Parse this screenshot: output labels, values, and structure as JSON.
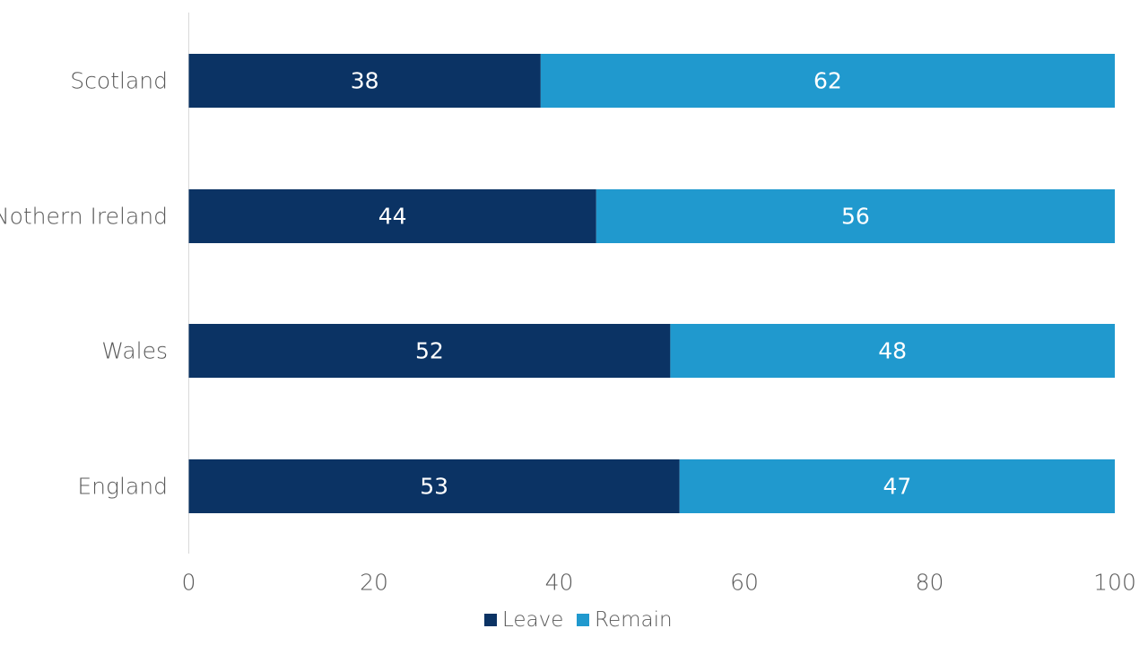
{
  "chart_data": {
    "type": "bar",
    "orientation": "horizontal",
    "stacked": true,
    "categories": [
      "Scotland",
      "Nothern Ireland",
      "Wales",
      "England"
    ],
    "series": [
      {
        "name": "Leave",
        "values": [
          38,
          44,
          52,
          53
        ],
        "color": "#0b3364"
      },
      {
        "name": "Remain",
        "values": [
          62,
          56,
          48,
          47
        ],
        "color": "#2099ce"
      }
    ],
    "xlim": [
      0,
      100
    ],
    "xticks": [
      "0",
      "20",
      "40",
      "60",
      "80",
      "100"
    ],
    "title": "",
    "xlabel": "",
    "ylabel": "",
    "grid": false,
    "legend_position": "bottom",
    "data_labels": true
  }
}
